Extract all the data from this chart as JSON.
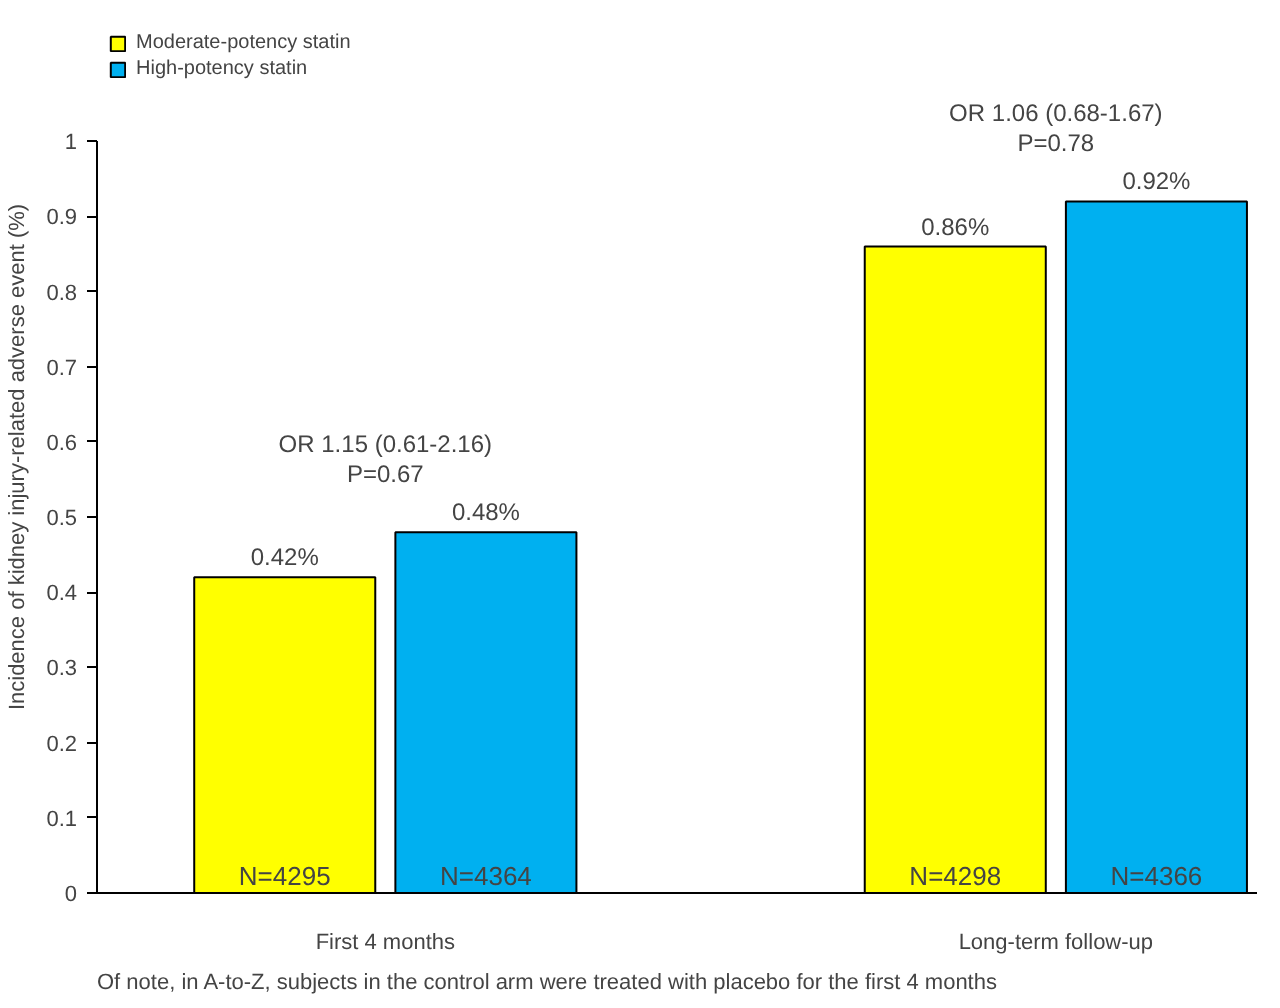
{
  "chart_data": {
    "type": "bar",
    "ylabel": "Incidence of kidney injury-related adverse event (%)",
    "categories": [
      "First 4 months",
      "Long-term follow-up"
    ],
    "series": [
      {
        "name": "Moderate-potency statin",
        "color": "#ffff00",
        "values": [
          0.42,
          0.86
        ],
        "value_labels": [
          "0.42%",
          "0.86%"
        ]
      },
      {
        "name": "High-potency statin",
        "color": "#00b0f0",
        "values": [
          0.48,
          0.92
        ],
        "value_labels": [
          "0.48%",
          "0.92%"
        ]
      }
    ],
    "ylim": [
      0,
      1
    ],
    "yticks": [
      0,
      0.1,
      0.2,
      0.3,
      0.4,
      0.5,
      0.6,
      0.7,
      0.8,
      0.9,
      1
    ],
    "grid": false,
    "legend": "top left",
    "annotations": [
      "OR 1.15 (0.61-2.16)\nP=0.67",
      "OR 1.06 (0.68-1.67)\nP=0.78",
      "N=4295",
      "N=4364",
      "N=4298",
      "N=4366",
      "Of note, in A-to-Z, subjects in the control arm were treated with placebo for the first 4 months"
    ]
  }
}
